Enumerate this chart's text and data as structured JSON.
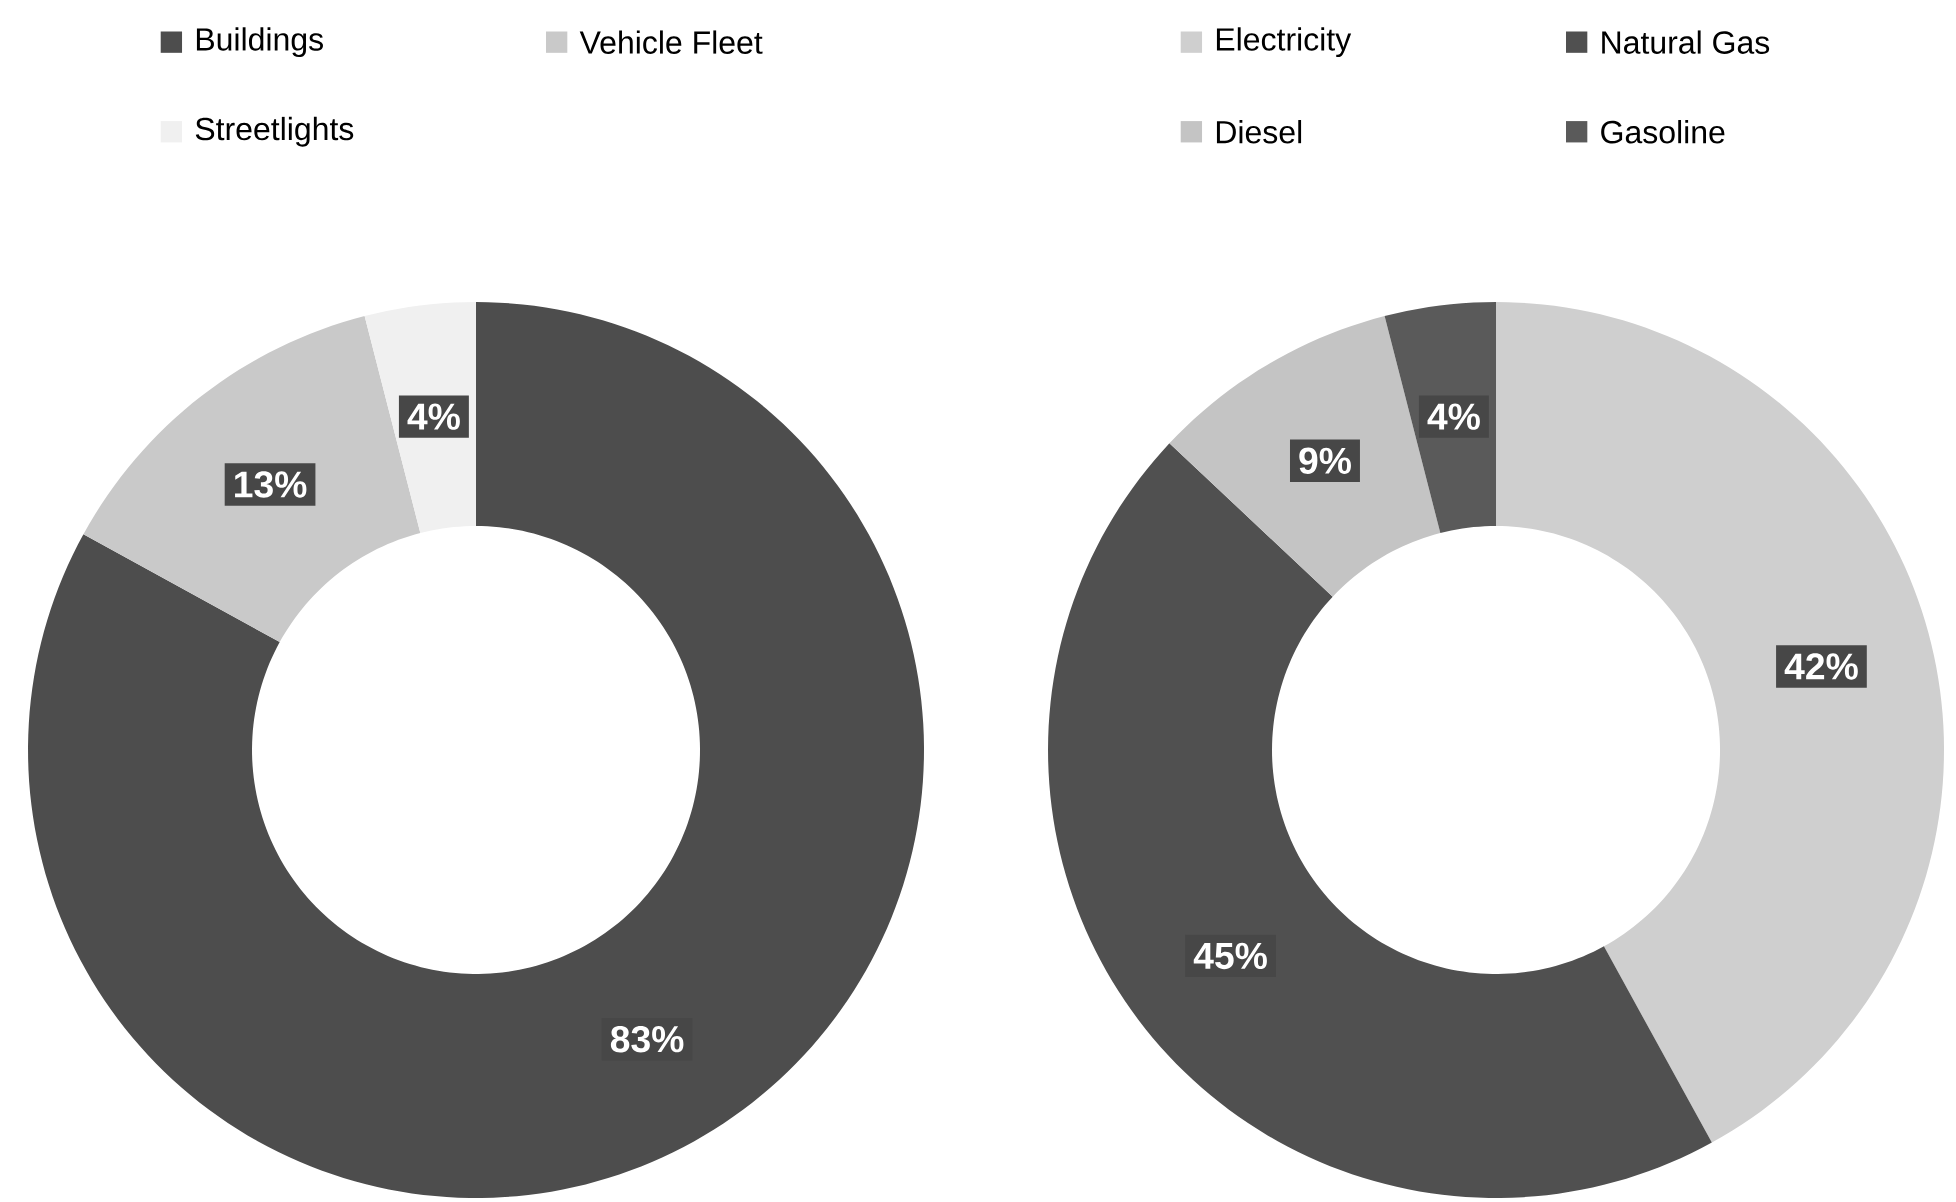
{
  "chart_data": [
    {
      "type": "donut",
      "categories": [
        "Buildings",
        "Vehicle Fleet",
        "Streetlights"
      ],
      "values": [
        83,
        13,
        4
      ],
      "colors": [
        "#4d4d4d",
        "#c9c9c9",
        "#f0f0f0"
      ],
      "value_labels": [
        "83%",
        "13%",
        "4%"
      ],
      "legend": "top"
    },
    {
      "type": "donut",
      "categories": [
        "Electricity",
        "Natural Gas",
        "Diesel",
        "Gasoline"
      ],
      "values": [
        42,
        45,
        9,
        4
      ],
      "colors": [
        "#cfcfcf",
        "#505050",
        "#c4c4c4",
        "#5a5a5a"
      ],
      "value_labels": [
        "42%",
        "45%",
        "9%",
        "4%"
      ],
      "legend": "top"
    }
  ]
}
